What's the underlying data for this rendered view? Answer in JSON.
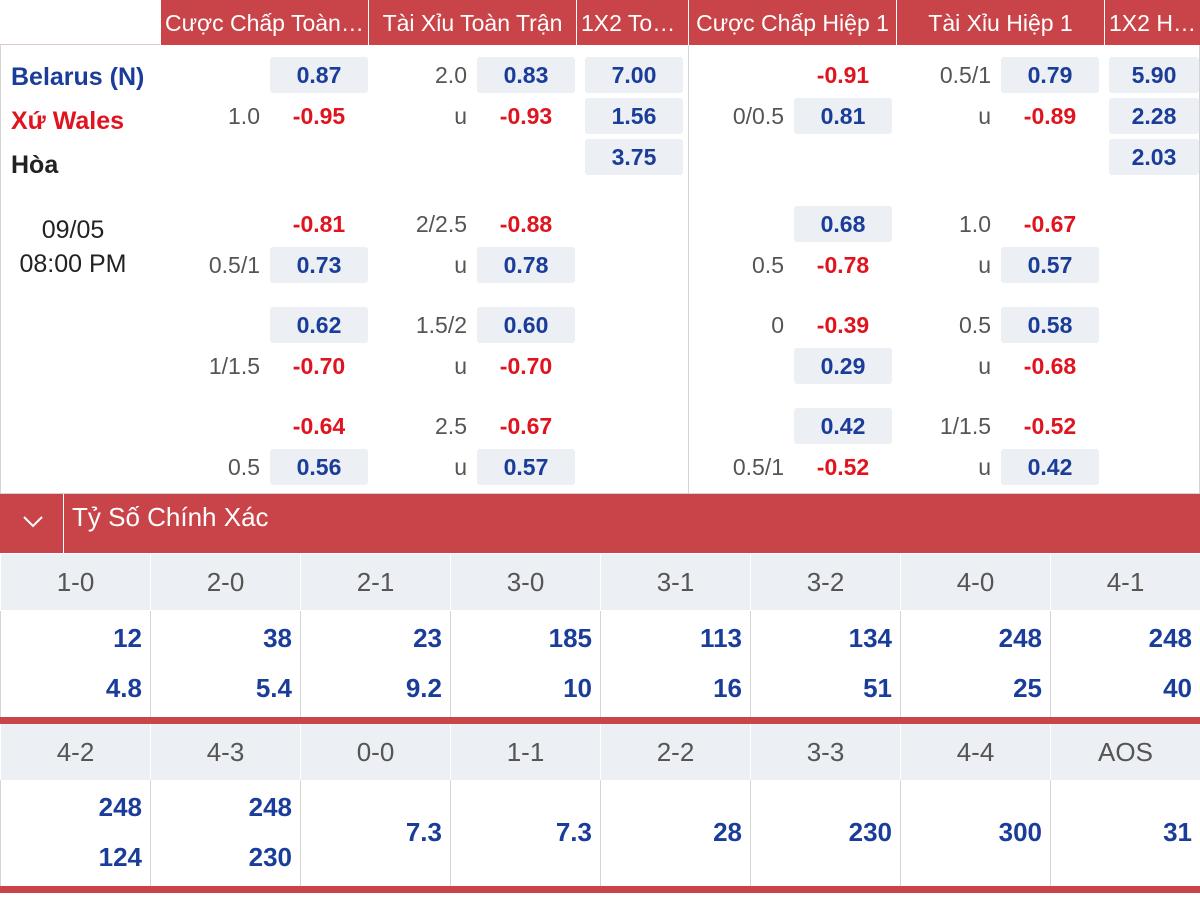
{
  "headers": [
    "Cược Chấp Toàn ...",
    "Tài Xỉu Toàn Trận",
    "1X2 Toà...",
    "Cược Chấp Hiệp 1",
    "Tài Xỉu Hiệp 1",
    "1X2 Hiệ..."
  ],
  "match": {
    "home": "Belarus (N)",
    "away": "Xứ Wales",
    "draw": "Hòa",
    "date": "09/05",
    "time": "08:00 PM"
  },
  "full_time": {
    "handicap": [
      {
        "line": "1.0",
        "home": "0.87",
        "away": "-0.95"
      },
      {
        "line": "0.5/1",
        "home": "-0.81",
        "away": "0.73"
      },
      {
        "line": "1/1.5",
        "home": "0.62",
        "away": "-0.70"
      },
      {
        "line": "0.5",
        "home": "-0.64",
        "away": "0.56"
      }
    ],
    "over_under": [
      {
        "line": "2.0",
        "u": "u",
        "over": "0.83",
        "under": "-0.93"
      },
      {
        "line": "2/2.5",
        "u": "u",
        "over": "-0.88",
        "under": "0.78"
      },
      {
        "line": "1.5/2",
        "u": "u",
        "over": "0.60",
        "under": "-0.70"
      },
      {
        "line": "2.5",
        "u": "u",
        "over": "-0.67",
        "under": "0.57"
      }
    ],
    "x12": [
      "7.00",
      "1.56",
      "3.75"
    ]
  },
  "first_half": {
    "handicap": [
      {
        "line": "0/0.5",
        "home": "-0.91",
        "away": "0.81"
      },
      {
        "line": "0.5",
        "home": "0.68",
        "away": "-0.78"
      },
      {
        "line": "0",
        "home": "-0.39",
        "away": "0.29"
      },
      {
        "line": "0.5/1",
        "home": "0.42",
        "away": "-0.52"
      }
    ],
    "over_under": [
      {
        "line": "0.5/1",
        "u": "u",
        "over": "0.79",
        "under": "-0.89"
      },
      {
        "line": "1.0",
        "u": "u",
        "over": "-0.67",
        "under": "0.57"
      },
      {
        "line": "0.5",
        "u": "u",
        "over": "0.58",
        "under": "-0.68"
      },
      {
        "line": "1/1.5",
        "u": "u",
        "over": "-0.52",
        "under": "0.42"
      }
    ],
    "x12": [
      "5.90",
      "2.28",
      "2.03"
    ]
  },
  "correct_score": {
    "title": "Tỷ Số Chính Xác",
    "row1": [
      {
        "score": "1-0",
        "v1": "12",
        "v2": "4.8"
      },
      {
        "score": "2-0",
        "v1": "38",
        "v2": "5.4"
      },
      {
        "score": "2-1",
        "v1": "23",
        "v2": "9.2"
      },
      {
        "score": "3-0",
        "v1": "185",
        "v2": "10"
      },
      {
        "score": "3-1",
        "v1": "113",
        "v2": "16"
      },
      {
        "score": "3-2",
        "v1": "134",
        "v2": "51"
      },
      {
        "score": "4-0",
        "v1": "248",
        "v2": "25"
      },
      {
        "score": "4-1",
        "v1": "248",
        "v2": "40"
      }
    ],
    "row2": [
      {
        "score": "4-2",
        "v1": "248",
        "v2": "124"
      },
      {
        "score": "4-3",
        "v1": "248",
        "v2": "230"
      },
      {
        "score": "0-0",
        "v": "7.3"
      },
      {
        "score": "1-1",
        "v": "7.3"
      },
      {
        "score": "2-2",
        "v": "28"
      },
      {
        "score": "3-3",
        "v": "230"
      },
      {
        "score": "4-4",
        "v": "300"
      },
      {
        "score": "AOS",
        "v": "31"
      }
    ]
  }
}
